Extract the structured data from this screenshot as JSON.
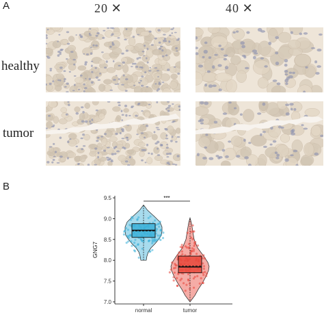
{
  "panel_a": {
    "letter": "A",
    "columns": [
      "20 ✕",
      "40 ✕"
    ],
    "rows": [
      "healthy",
      "tumor"
    ]
  },
  "panel_b": {
    "letter": "B"
  },
  "chart_data": {
    "type": "violin-box-jitter",
    "title": "",
    "xlabel": "",
    "ylabel": "GNG7",
    "categories": [
      "normal",
      "tumor"
    ],
    "ylim": [
      6.95,
      9.55
    ],
    "yticks": [
      "7.0",
      "7.5",
      "8.0",
      "8.5",
      "9.0",
      "9.5"
    ],
    "significance": "***",
    "colors": {
      "normal": "#3bb0d8",
      "tumor": "#e8463a"
    },
    "series": [
      {
        "category": "normal",
        "min": 8.0,
        "q1": 8.55,
        "median": 8.72,
        "mean": 8.7,
        "q3": 8.88,
        "max": 9.32
      },
      {
        "category": "tumor",
        "min": 7.0,
        "q1": 7.7,
        "median": 7.84,
        "mean": 7.86,
        "q3": 8.1,
        "max": 9.0
      }
    ]
  }
}
